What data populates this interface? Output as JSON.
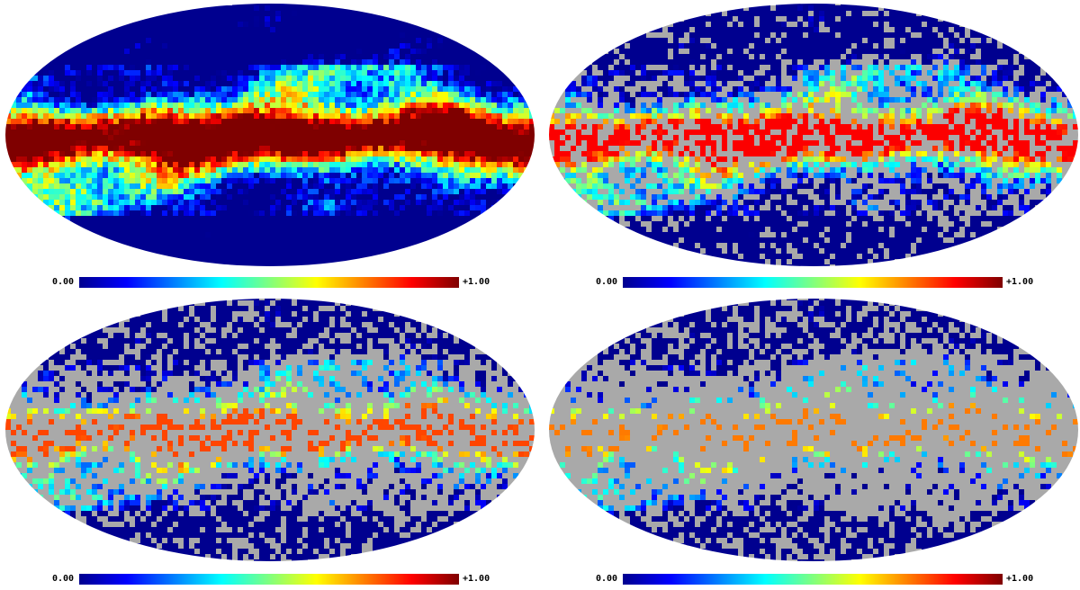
{
  "panels": [
    {
      "colorbar": {
        "min_label": "0.00",
        "max_label": "+1.00"
      },
      "mask_level": 0.0
    },
    {
      "colorbar": {
        "min_label": "0.00",
        "max_label": "+1.00"
      },
      "mask_level": 0.35
    },
    {
      "colorbar": {
        "min_label": "0.00",
        "max_label": "+1.00"
      },
      "mask_level": 0.55
    },
    {
      "colorbar": {
        "min_label": "0.00",
        "max_label": "+1.00"
      },
      "mask_level": 0.7
    }
  ],
  "colors": {
    "mask_gray": "#a9a9a9",
    "colormap": [
      "#00008f",
      "#0000ff",
      "#007fff",
      "#00ffff",
      "#7fff7f",
      "#ffff00",
      "#ff7f00",
      "#ff0000",
      "#7f0000"
    ]
  },
  "projection": "mollweide"
}
